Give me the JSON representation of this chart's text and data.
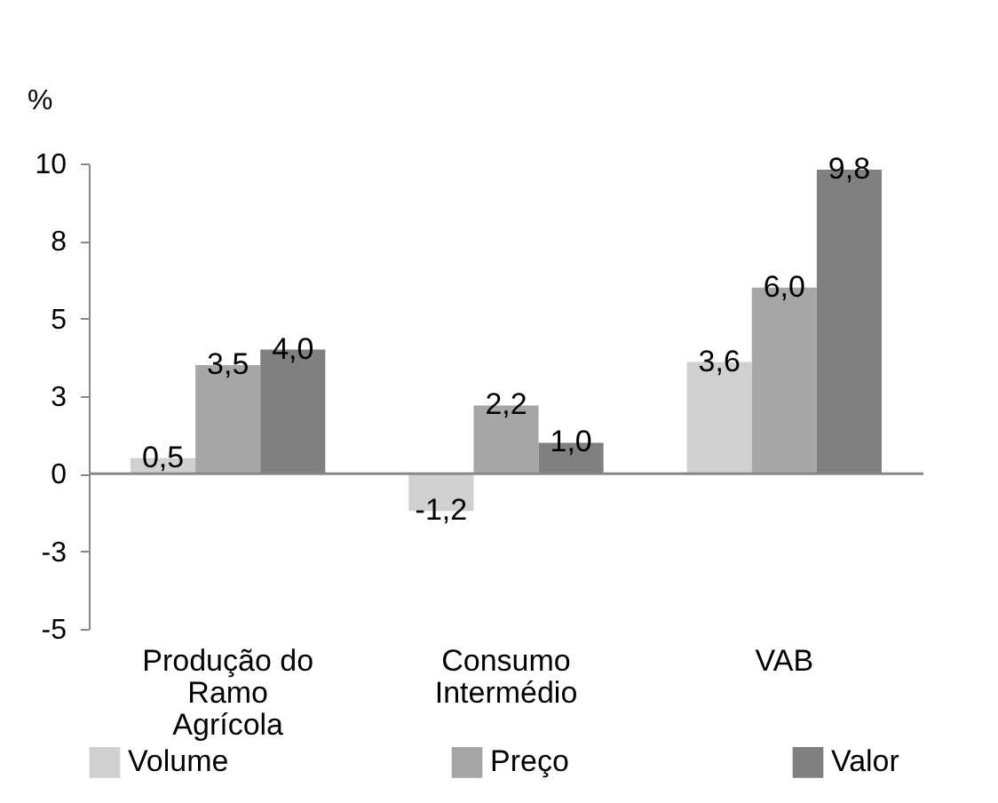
{
  "chart_data": {
    "type": "bar",
    "ylabel": "%",
    "categories": [
      "Produção do\nRamo\nAgrícola",
      "Consumo\nIntermédio",
      "VAB"
    ],
    "series": [
      {
        "name": "Volume",
        "color": "#d0d0d0",
        "values": [
          0.5,
          -1.2,
          3.6
        ],
        "value_labels": [
          "0,5",
          "-1,2",
          "3,6"
        ]
      },
      {
        "name": "Preço",
        "color": "#a6a6a6",
        "values": [
          3.5,
          2.2,
          6.0
        ],
        "value_labels": [
          "3,5",
          "2,2",
          "6,0"
        ]
      },
      {
        "name": "Valor",
        "color": "#808080",
        "values": [
          4.0,
          1.0,
          9.8
        ],
        "value_labels": [
          "4,0",
          "1,0",
          "9,8"
        ]
      }
    ],
    "ylim": [
      -5,
      10
    ],
    "yticks": [
      10,
      {
        "value": 7.5,
        "label": "8"
      },
      5,
      {
        "value": 2.5,
        "label": "3"
      },
      0,
      {
        "value": -2.5,
        "label": "-3"
      },
      -5
    ],
    "ref_lines": [
      {
        "axis": "y",
        "value": 0,
        "color": "#888888"
      }
    ],
    "grid": false,
    "legend": "bottom"
  }
}
